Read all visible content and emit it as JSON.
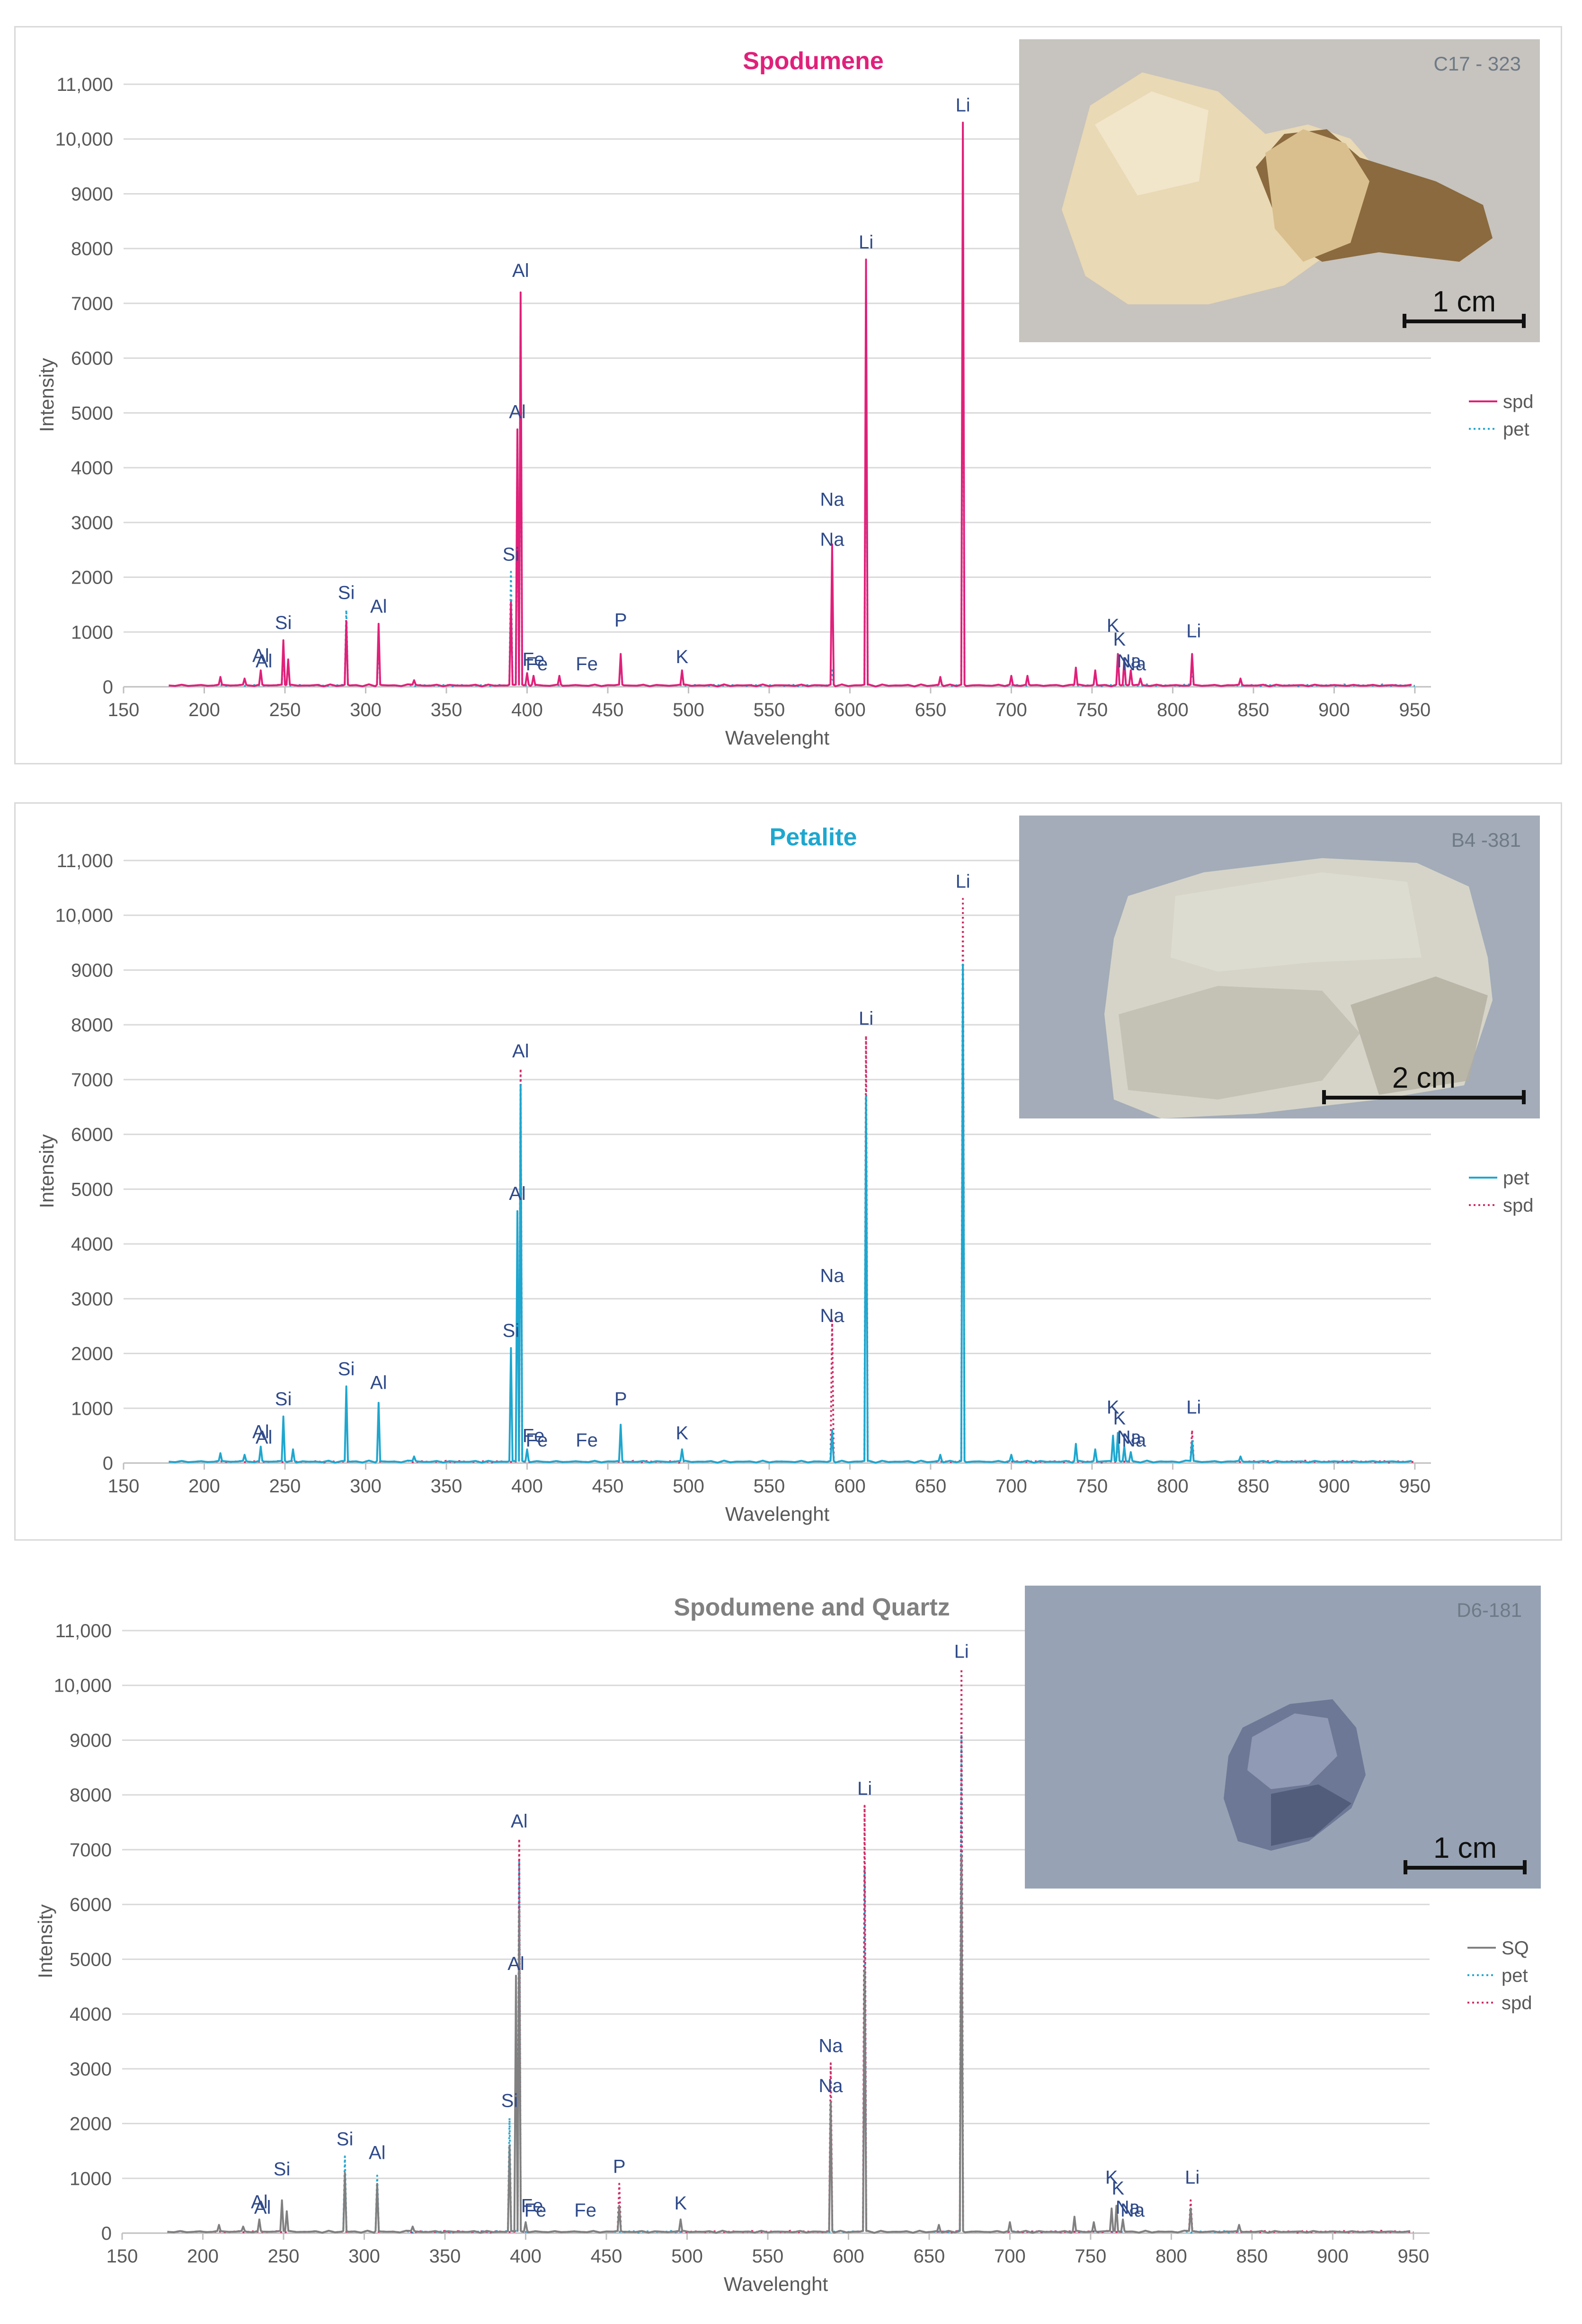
{
  "chart_data": [
    {
      "type": "line",
      "title": "Spodumene",
      "title_color": "#e0207a",
      "xlabel": "Wavelenght",
      "ylabel": "Intensity",
      "xlim": [
        150,
        960
      ],
      "ylim": [
        0,
        11000
      ],
      "xticks": [
        150,
        200,
        250,
        300,
        350,
        400,
        450,
        500,
        550,
        600,
        650,
        700,
        750,
        800,
        850,
        900,
        950
      ],
      "yticks": [
        0,
        1000,
        2000,
        3000,
        4000,
        5000,
        6000,
        7000,
        8000,
        9000,
        10000,
        11000
      ],
      "ytick_labels": [
        "0",
        "1000",
        "2000",
        "3000",
        "4000",
        "5000",
        "6000",
        "7000",
        "8000",
        "9000",
        "10,000",
        "11,000"
      ],
      "grid": "horizontal",
      "legend": "right",
      "series": [
        {
          "name": "spd",
          "color": "#e0207a",
          "style": "solid",
          "peaks": [
            [
              210,
              180
            ],
            [
              225,
              150
            ],
            [
              235,
              300
            ],
            [
              249,
              850
            ],
            [
              252,
              500
            ],
            [
              288,
              1200
            ],
            [
              308,
              1150
            ],
            [
              330,
              120
            ],
            [
              390,
              1550
            ],
            [
              394,
              4700
            ],
            [
              396,
              7200
            ],
            [
              400,
              250
            ],
            [
              404,
              200
            ],
            [
              420,
              200
            ],
            [
              458,
              600
            ],
            [
              496,
              300
            ],
            [
              589,
              2600
            ],
            [
              610,
              7800
            ],
            [
              656,
              180
            ],
            [
              670,
              10300
            ],
            [
              700,
              200
            ],
            [
              710,
              200
            ],
            [
              740,
              350
            ],
            [
              752,
              300
            ],
            [
              766,
              600
            ],
            [
              770,
              500
            ],
            [
              774,
              300
            ],
            [
              780,
              150
            ],
            [
              812,
              600
            ],
            [
              842,
              150
            ]
          ]
        },
        {
          "name": "pet",
          "color": "#29a8cf",
          "style": "dotted",
          "peaks": [
            [
              249,
              600
            ],
            [
              288,
              1400
            ],
            [
              308,
              900
            ],
            [
              390,
              2100
            ],
            [
              394,
              4500
            ],
            [
              396,
              6800
            ],
            [
              458,
              500
            ],
            [
              589,
              300
            ],
            [
              610,
              6700
            ],
            [
              670,
              9100
            ],
            [
              766,
              550
            ],
            [
              812,
              400
            ]
          ]
        }
      ],
      "annotations": [
        {
          "text": "Al",
          "x": 235,
          "y": 350
        },
        {
          "text": "Al",
          "x": 237,
          "y": 250
        },
        {
          "text": "Si",
          "x": 249,
          "y": 950
        },
        {
          "text": "Si",
          "x": 288,
          "y": 1500
        },
        {
          "text": "Al",
          "x": 308,
          "y": 1250
        },
        {
          "text": "Si",
          "x": 390,
          "y": 2200
        },
        {
          "text": "Al",
          "x": 394,
          "y": 4800
        },
        {
          "text": "Al",
          "x": 396,
          "y": 7380
        },
        {
          "text": "Fe",
          "x": 404,
          "y": 280
        },
        {
          "text": "Fe",
          "x": 406,
          "y": 200
        },
        {
          "text": "Fe",
          "x": 437,
          "y": 200
        },
        {
          "text": "P",
          "x": 458,
          "y": 1000
        },
        {
          "text": "K",
          "x": 496,
          "y": 330
        },
        {
          "text": "Na",
          "x": 589,
          "y": 3200
        },
        {
          "text": "Na",
          "x": 589,
          "y": 2470
        },
        {
          "text": "Li",
          "x": 610,
          "y": 7900
        },
        {
          "text": "Li",
          "x": 670,
          "y": 10400
        },
        {
          "text": "K",
          "x": 763,
          "y": 900
        },
        {
          "text": "K",
          "x": 767,
          "y": 650
        },
        {
          "text": "Na",
          "x": 773,
          "y": 250
        },
        {
          "text": "Na",
          "x": 776,
          "y": 200
        },
        {
          "text": "Li",
          "x": 813,
          "y": 800
        }
      ],
      "photo": {
        "sample_id": "C17 - 323",
        "scale_label": "1 cm",
        "background": "#c7c3be",
        "mineral_colors": [
          "#e9d9b4",
          "#d9bf8e",
          "#8a6a3e"
        ]
      }
    },
    {
      "type": "line",
      "title": "Petalite",
      "title_color": "#1ea7cf",
      "xlabel": "Wavelenght",
      "ylabel": "Intensity",
      "xlim": [
        150,
        960
      ],
      "ylim": [
        0,
        11000
      ],
      "xticks": [
        150,
        200,
        250,
        300,
        350,
        400,
        450,
        500,
        550,
        600,
        650,
        700,
        750,
        800,
        850,
        900,
        950
      ],
      "yticks": [
        0,
        1000,
        2000,
        3000,
        4000,
        5000,
        6000,
        7000,
        8000,
        9000,
        10000,
        11000
      ],
      "ytick_labels": [
        "0",
        "1000",
        "2000",
        "3000",
        "4000",
        "5000",
        "6000",
        "7000",
        "8000",
        "9000",
        "10,000",
        "11,000"
      ],
      "grid": "horizontal",
      "legend": "right",
      "series": [
        {
          "name": "pet",
          "color": "#1ea7cf",
          "style": "solid",
          "peaks": [
            [
              210,
              180
            ],
            [
              225,
              150
            ],
            [
              235,
              300
            ],
            [
              249,
              850
            ],
            [
              255,
              250
            ],
            [
              288,
              1400
            ],
            [
              308,
              1100
            ],
            [
              330,
              120
            ],
            [
              390,
              2100
            ],
            [
              394,
              4600
            ],
            [
              396,
              6900
            ],
            [
              400,
              250
            ],
            [
              458,
              700
            ],
            [
              496,
              250
            ],
            [
              589,
              600
            ],
            [
              610,
              6700
            ],
            [
              656,
              150
            ],
            [
              670,
              9100
            ],
            [
              700,
              150
            ],
            [
              740,
              350
            ],
            [
              752,
              250
            ],
            [
              763,
              500
            ],
            [
              766,
              550
            ],
            [
              770,
              300
            ],
            [
              774,
              200
            ],
            [
              812,
              400
            ],
            [
              842,
              120
            ]
          ]
        },
        {
          "name": "spd",
          "color": "#d0306a",
          "style": "dotted",
          "peaks": [
            [
              396,
              7200
            ],
            [
              589,
              2600
            ],
            [
              610,
              7800
            ],
            [
              670,
              10300
            ],
            [
              766,
              500
            ],
            [
              812,
              600
            ]
          ]
        }
      ],
      "annotations": [
        {
          "text": "Al",
          "x": 235,
          "y": 350
        },
        {
          "text": "Al",
          "x": 237,
          "y": 250
        },
        {
          "text": "Si",
          "x": 249,
          "y": 950
        },
        {
          "text": "Si",
          "x": 288,
          "y": 1500
        },
        {
          "text": "Al",
          "x": 308,
          "y": 1250
        },
        {
          "text": "Si",
          "x": 390,
          "y": 2200
        },
        {
          "text": "Al",
          "x": 394,
          "y": 4700
        },
        {
          "text": "Al",
          "x": 396,
          "y": 7300
        },
        {
          "text": "Fe",
          "x": 404,
          "y": 280
        },
        {
          "text": "Fe",
          "x": 406,
          "y": 200
        },
        {
          "text": "Fe",
          "x": 437,
          "y": 200
        },
        {
          "text": "P",
          "x": 458,
          "y": 950
        },
        {
          "text": "K",
          "x": 496,
          "y": 330
        },
        {
          "text": "Na",
          "x": 589,
          "y": 3200
        },
        {
          "text": "Na",
          "x": 589,
          "y": 2470
        },
        {
          "text": "Li",
          "x": 610,
          "y": 7900
        },
        {
          "text": "Li",
          "x": 670,
          "y": 10400
        },
        {
          "text": "K",
          "x": 763,
          "y": 800
        },
        {
          "text": "K",
          "x": 767,
          "y": 600
        },
        {
          "text": "Na",
          "x": 773,
          "y": 250
        },
        {
          "text": "Na",
          "x": 776,
          "y": 200
        },
        {
          "text": "Li",
          "x": 813,
          "y": 800
        }
      ],
      "photo": {
        "sample_id": "B4 -381",
        "scale_label": "2 cm",
        "background": "#a3acb8",
        "mineral_colors": [
          "#d6d4c8",
          "#c2c0b2",
          "#b1ae9f"
        ]
      }
    },
    {
      "type": "line",
      "title": "Spodumene and Quartz",
      "title_color": "#808080",
      "xlabel": "Wavelenght",
      "ylabel": "Intensity",
      "xlim": [
        150,
        960
      ],
      "ylim": [
        0,
        11000
      ],
      "xticks": [
        150,
        200,
        250,
        300,
        350,
        400,
        450,
        500,
        550,
        600,
        650,
        700,
        750,
        800,
        850,
        900,
        950
      ],
      "yticks": [
        0,
        1000,
        2000,
        3000,
        4000,
        5000,
        6000,
        7000,
        8000,
        9000,
        10000,
        11000
      ],
      "ytick_labels": [
        "0",
        "1000",
        "2000",
        "3000",
        "4000",
        "5000",
        "6000",
        "7000",
        "8000",
        "9000",
        "10,000",
        "11,000"
      ],
      "grid": "horizontal",
      "legend": "right",
      "series": [
        {
          "name": "SQ",
          "color": "#808080",
          "style": "solid",
          "peaks": [
            [
              210,
              150
            ],
            [
              225,
              120
            ],
            [
              235,
              250
            ],
            [
              249,
              600
            ],
            [
              252,
              400
            ],
            [
              288,
              1100
            ],
            [
              308,
              900
            ],
            [
              330,
              120
            ],
            [
              390,
              1600
            ],
            [
              394,
              4700
            ],
            [
              396,
              5900
            ],
            [
              400,
              200
            ],
            [
              458,
              500
            ],
            [
              496,
              250
            ],
            [
              589,
              2400
            ],
            [
              610,
              4800
            ],
            [
              656,
              150
            ],
            [
              670,
              6900
            ],
            [
              700,
              200
            ],
            [
              740,
              300
            ],
            [
              752,
              200
            ],
            [
              763,
              450
            ],
            [
              766,
              500
            ],
            [
              770,
              250
            ],
            [
              812,
              450
            ],
            [
              842,
              150
            ]
          ]
        },
        {
          "name": "pet",
          "color": "#29a8cf",
          "style": "dotted",
          "peaks": [
            [
              288,
              1400
            ],
            [
              308,
              1050
            ],
            [
              390,
              2100
            ],
            [
              396,
              6800
            ],
            [
              610,
              6700
            ],
            [
              670,
              9100
            ]
          ]
        },
        {
          "name": "spd",
          "color": "#d0306a",
          "style": "dotted",
          "peaks": [
            [
              396,
              7200
            ],
            [
              458,
              900
            ],
            [
              589,
              3100
            ],
            [
              610,
              7800
            ],
            [
              670,
              10300
            ],
            [
              812,
              600
            ]
          ]
        }
      ],
      "annotations": [
        {
          "text": "Al",
          "x": 235,
          "y": 350
        },
        {
          "text": "Al",
          "x": 237,
          "y": 250
        },
        {
          "text": "Si",
          "x": 249,
          "y": 950
        },
        {
          "text": "Si",
          "x": 288,
          "y": 1500
        },
        {
          "text": "Al",
          "x": 308,
          "y": 1250
        },
        {
          "text": "Si",
          "x": 390,
          "y": 2200
        },
        {
          "text": "Al",
          "x": 394,
          "y": 4700
        },
        {
          "text": "Al",
          "x": 396,
          "y": 7300
        },
        {
          "text": "Fe",
          "x": 404,
          "y": 280
        },
        {
          "text": "Fe",
          "x": 406,
          "y": 200
        },
        {
          "text": "Fe",
          "x": 437,
          "y": 200
        },
        {
          "text": "P",
          "x": 458,
          "y": 1000
        },
        {
          "text": "K",
          "x": 496,
          "y": 330
        },
        {
          "text": "Na",
          "x": 589,
          "y": 3200
        },
        {
          "text": "Na",
          "x": 589,
          "y": 2470
        },
        {
          "text": "Li",
          "x": 610,
          "y": 7900
        },
        {
          "text": "Li",
          "x": 670,
          "y": 10400
        },
        {
          "text": "K",
          "x": 763,
          "y": 800
        },
        {
          "text": "K",
          "x": 767,
          "y": 600
        },
        {
          "text": "Na",
          "x": 773,
          "y": 250
        },
        {
          "text": "Na",
          "x": 776,
          "y": 200
        },
        {
          "text": "Li",
          "x": 813,
          "y": 800
        }
      ],
      "photo": {
        "sample_id": "D6-181",
        "scale_label": "1 cm",
        "background": "#97a3b4",
        "mineral_colors": [
          "#6d7896",
          "#4f5a78",
          "#9aa2bb"
        ]
      }
    }
  ]
}
